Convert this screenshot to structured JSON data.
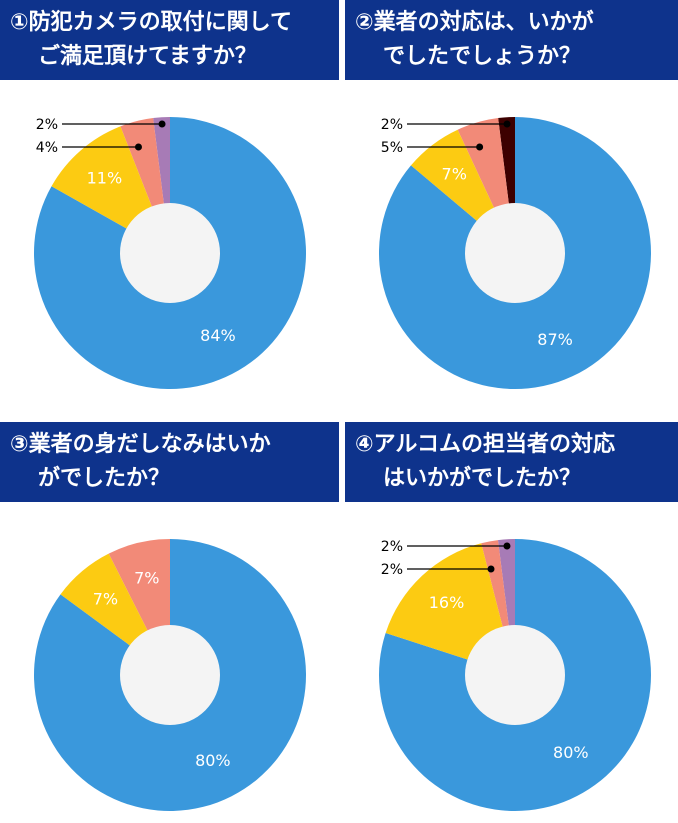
{
  "chart_data": [
    {
      "type": "pie",
      "title": [
        "①防犯カメラの取付に関して",
        "ご満足頂けてますか？"
      ],
      "values": [
        84,
        11,
        4,
        2
      ],
      "labels": [
        "84%",
        "11%",
        "4%",
        "2%"
      ],
      "colors": [
        "#3a98dc",
        "#fccb12",
        "#f28a78",
        "#a77bb6"
      ],
      "donut": true
    },
    {
      "type": "pie",
      "title": [
        "②業者の対応は、いかが",
        "でしたでしょうか？"
      ],
      "values": [
        87,
        7,
        5,
        2
      ],
      "labels": [
        "87%",
        "7%",
        "5%",
        "2%"
      ],
      "colors": [
        "#3a98dc",
        "#fccb12",
        "#f28a78",
        "#3d0000"
      ],
      "donut": true
    },
    {
      "type": "pie",
      "title": [
        "③業者の身だしなみはいか",
        "がでしたか？"
      ],
      "values": [
        80,
        7,
        7
      ],
      "labels": [
        "80%",
        "7%",
        "7%"
      ],
      "colors": [
        "#3a98dc",
        "#fccb12",
        "#f28a78"
      ],
      "donut": true
    },
    {
      "type": "pie",
      "title": [
        "④アルコムの担当者の対応",
        "はいかがでしたか？"
      ],
      "values": [
        80,
        16,
        2,
        2
      ],
      "labels": [
        "80%",
        "16%",
        "2%",
        "2%"
      ],
      "colors": [
        "#3a98dc",
        "#fccb12",
        "#f28a78",
        "#a77bb6"
      ],
      "donut": true
    }
  ]
}
